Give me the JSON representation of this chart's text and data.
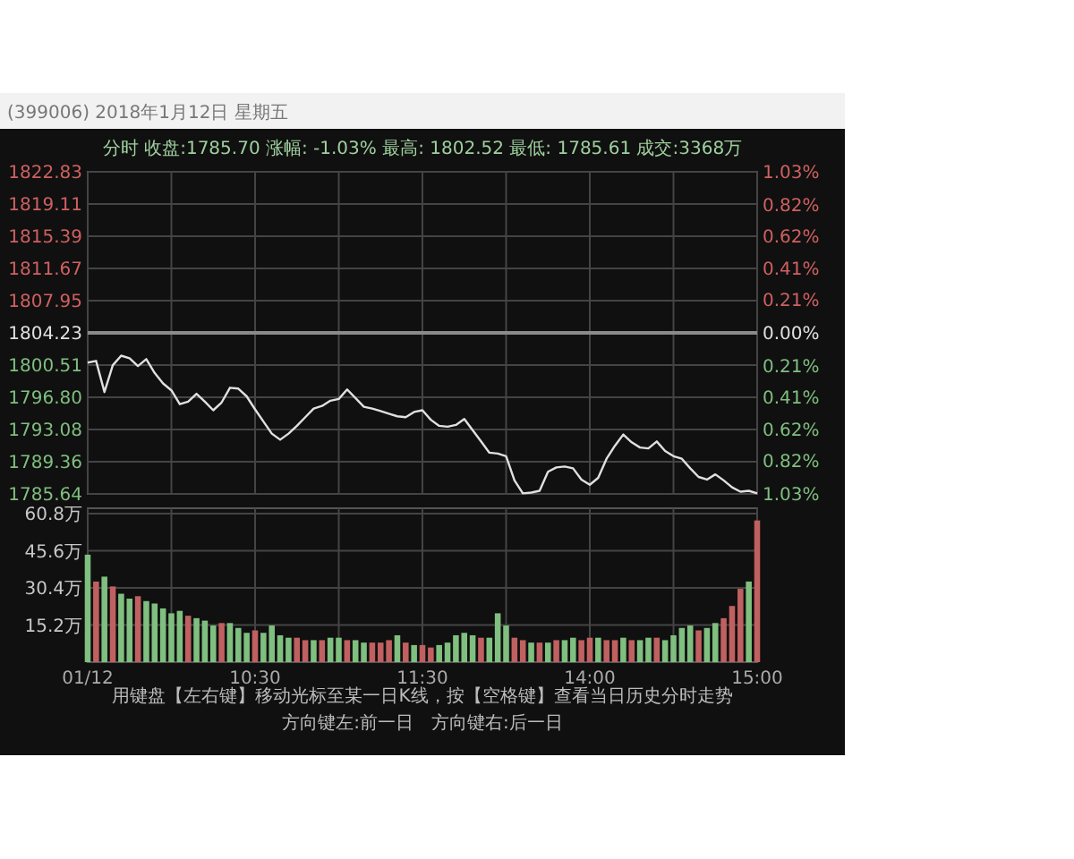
{
  "chart_data": [
    {
      "type": "line",
      "title": "(399006) 2018年1月12日 星期五",
      "subtitle": "分时 收盘:1785.70 涨幅: -1.03% 最高: 1802.52 最低: 1785.61 成交:3368万",
      "categories": [
        null,
        null,
        null,
        null,
        null,
        null,
        null,
        null,
        null,
        null,
        null,
        null,
        null,
        null,
        null,
        null,
        null,
        null,
        null,
        null,
        null,
        null,
        null,
        null,
        null,
        null,
        null,
        null,
        null,
        null,
        null,
        null,
        null,
        null,
        null,
        null,
        null,
        null,
        null,
        null,
        null,
        null,
        null,
        null,
        null,
        null,
        null,
        null,
        null,
        null,
        null,
        null,
        null,
        null,
        null,
        null,
        null,
        null,
        null,
        null,
        null,
        null,
        null,
        null,
        null,
        null,
        null,
        null,
        null,
        null,
        null,
        null,
        null,
        null,
        null,
        null,
        null,
        null,
        null,
        null,
        null
      ],
      "series": [
        {
          "color": "#e0e0e0",
          "values": [
            1800.8,
            1801.0,
            1797.4,
            1800.5,
            1801.6,
            1801.3,
            1800.4,
            1801.2,
            1799.6,
            1798.4,
            1797.6,
            1796.0,
            1796.3,
            1797.2,
            1796.3,
            1795.3,
            1796.2,
            1797.9,
            1797.8,
            1796.9,
            1795.4,
            1794.0,
            1792.6,
            1791.9,
            1792.6,
            1793.5,
            1794.5,
            1795.5,
            1795.8,
            1796.4,
            1796.6,
            1797.7,
            1796.7,
            1795.7,
            1795.5,
            1795.2,
            1794.9,
            1794.6,
            1794.5,
            1795.1,
            1795.3,
            1794.2,
            1793.5,
            1793.4,
            1793.6,
            1794.3,
            1793.0,
            1791.7,
            1790.4,
            1790.3,
            1790.0,
            1787.2,
            1785.7,
            1785.8,
            1786.0,
            1788.2,
            1788.7,
            1788.8,
            1788.6,
            1787.3,
            1786.7,
            1787.5,
            1789.7,
            1791.2,
            1792.5,
            1791.6,
            1791.0,
            1790.9,
            1791.7,
            1790.6,
            1790.0,
            1789.7,
            1788.6,
            1787.6,
            1787.3,
            1787.9,
            1787.2,
            1786.4,
            1785.9,
            1786.0,
            1785.7
          ]
        }
      ],
      "ylim": [
        1785.64,
        1822.83
      ],
      "yticks": [
        {
          "value": 1785.64,
          "label": "1785.64"
        },
        {
          "value": 1789.36,
          "label": "1789.36"
        },
        {
          "value": 1793.08,
          "label": "1793.08"
        },
        {
          "value": 1796.8,
          "label": "1796.80"
        },
        {
          "value": 1800.51,
          "label": "1800.51"
        },
        {
          "value": 1804.23,
          "label": "1804.23"
        },
        {
          "value": 1807.95,
          "label": "1807.95"
        },
        {
          "value": 1811.67,
          "label": "1811.67"
        },
        {
          "value": 1815.39,
          "label": "1815.39"
        },
        {
          "value": 1819.11,
          "label": "1819.11"
        },
        {
          "value": 1822.83,
          "label": "1822.83"
        }
      ],
      "y2lim": [
        -1.03,
        1.03
      ],
      "y2ticks": [
        {
          "value": -1.03,
          "label": "1.03%"
        },
        {
          "value": -0.82,
          "label": "0.82%"
        },
        {
          "value": -0.62,
          "label": "0.62%"
        },
        {
          "value": -0.41,
          "label": "0.41%"
        },
        {
          "value": -0.21,
          "label": "0.21%"
        },
        {
          "value": 0,
          "label": "0.00%"
        },
        {
          "value": 0.21,
          "label": "0.21%"
        },
        {
          "value": 0.41,
          "label": "0.41%"
        },
        {
          "value": 0.62,
          "label": "0.62%"
        },
        {
          "value": 0.82,
          "label": "0.82%"
        },
        {
          "value": 1.03,
          "label": "1.03%"
        }
      ],
      "ref_lines": [
        {
          "axis": "y",
          "value": 1804.23,
          "color": "#8a8a8a"
        }
      ],
      "grid": true,
      "tick_labels": "y"
    },
    {
      "type": "bar",
      "categories": [
        "01/12",
        null,
        null,
        null,
        null,
        null,
        null,
        null,
        null,
        null,
        null,
        null,
        null,
        null,
        null,
        null,
        null,
        null,
        null,
        null,
        "10:30",
        null,
        null,
        null,
        null,
        null,
        null,
        null,
        null,
        null,
        null,
        null,
        null,
        null,
        null,
        null,
        null,
        null,
        null,
        null,
        "11:30",
        null,
        null,
        null,
        null,
        null,
        null,
        null,
        null,
        null,
        null,
        null,
        null,
        null,
        null,
        null,
        null,
        null,
        null,
        null,
        "14:00",
        null,
        null,
        null,
        null,
        null,
        null,
        null,
        null,
        null,
        null,
        null,
        null,
        null,
        null,
        null,
        null,
        null,
        null,
        null,
        "15:00"
      ],
      "values": [
        44,
        33,
        35,
        31,
        28,
        26,
        27,
        25,
        24,
        22,
        20,
        21,
        19,
        18,
        17,
        15,
        16,
        16,
        14,
        12,
        13,
        12,
        15,
        11,
        10,
        10,
        9,
        9,
        9,
        10,
        10,
        9,
        9,
        8,
        8,
        8,
        9,
        11,
        8,
        7,
        7,
        6,
        7,
        8,
        11,
        12,
        11,
        10,
        10,
        20,
        15,
        10,
        9,
        8,
        8,
        8,
        9,
        9,
        10,
        9,
        10,
        10,
        9,
        9,
        10,
        9,
        9,
        10,
        10,
        9,
        11,
        14,
        15,
        13,
        14,
        16,
        18,
        23,
        30,
        33,
        58
      ],
      "colors": [
        "#7fbf7f",
        "#c06060",
        "#7fbf7f",
        "#c06060",
        "#7fbf7f",
        "#7fbf7f",
        "#c06060",
        "#7fbf7f",
        "#7fbf7f",
        "#7fbf7f",
        "#7fbf7f",
        "#7fbf7f",
        "#c06060",
        "#7fbf7f",
        "#7fbf7f",
        "#7fbf7f",
        "#c06060",
        "#7fbf7f",
        "#7fbf7f",
        "#7fbf7f",
        "#c06060",
        "#7fbf7f",
        "#7fbf7f",
        "#7fbf7f",
        "#7fbf7f",
        "#c06060",
        "#c06060",
        "#7fbf7f",
        "#c06060",
        "#7fbf7f",
        "#7fbf7f",
        "#c06060",
        "#7fbf7f",
        "#7fbf7f",
        "#c06060",
        "#c06060",
        "#c06060",
        "#7fbf7f",
        "#c06060",
        "#7fbf7f",
        "#c06060",
        "#c06060",
        "#7fbf7f",
        "#7fbf7f",
        "#7fbf7f",
        "#7fbf7f",
        "#7fbf7f",
        "#c06060",
        "#7fbf7f",
        "#7fbf7f",
        "#7fbf7f",
        "#c06060",
        "#c06060",
        "#7fbf7f",
        "#c06060",
        "#7fbf7f",
        "#c06060",
        "#7fbf7f",
        "#7fbf7f",
        "#c06060",
        "#c06060",
        "#7fbf7f",
        "#c06060",
        "#c06060",
        "#7fbf7f",
        "#c06060",
        "#7fbf7f",
        "#7fbf7f",
        "#c06060",
        "#7fbf7f",
        "#7fbf7f",
        "#7fbf7f",
        "#7fbf7f",
        "#c06060",
        "#7fbf7f",
        "#7fbf7f",
        "#c06060",
        "#c06060",
        "#c06060",
        "#7fbf7f",
        "#c06060"
      ],
      "ylim": [
        0,
        63
      ],
      "yticks": [
        {
          "value": 15.2,
          "label": "15.2万"
        },
        {
          "value": 30.4,
          "label": "30.4万"
        },
        {
          "value": 45.6,
          "label": "45.6万"
        },
        {
          "value": 60.8,
          "label": "60.8万"
        }
      ],
      "annotations": [
        "用键盘【左右键】移动光标至某一日K线，按【空格键】查看当日历史分时走势",
        "方向键左:前一日　方向键右:后一日"
      ],
      "grid": true
    }
  ]
}
